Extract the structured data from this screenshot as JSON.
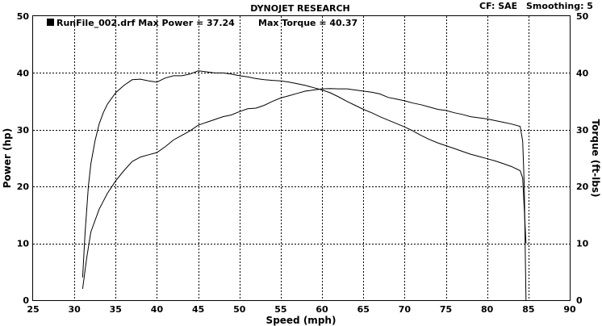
{
  "header": {
    "title": "DYNOJET RESEARCH",
    "cf": "CF: SAE",
    "smoothing": "Smoothing: 5"
  },
  "legend": {
    "run_label": "RunFile_002.drf Max Power = 37.24",
    "torque_label": "Max Torque = 40.37"
  },
  "chart_data": {
    "type": "line",
    "xlabel": "Speed (mph)",
    "ylabel": "Power (hp)",
    "y2label": "Torque (ft-lbs)",
    "xlim": [
      25,
      90
    ],
    "ylim": [
      0,
      50
    ],
    "y2lim": [
      0,
      50
    ],
    "x_ticks": [
      "25",
      "30",
      "35",
      "40",
      "45",
      "50",
      "55",
      "60",
      "65",
      "70",
      "75",
      "80",
      "85",
      "90"
    ],
    "y_ticks": [
      "0",
      "10",
      "20",
      "30",
      "40",
      "50"
    ],
    "y2_ticks": [
      "0",
      "10",
      "20",
      "30",
      "40",
      "50"
    ],
    "grid": true,
    "series": [
      {
        "axis": "left",
        "x": [
          31.0,
          31.5,
          32.0,
          33.0,
          34.0,
          35.0,
          36.0,
          37.0,
          38.0,
          39.0,
          40.0,
          41.0,
          42.0,
          43.0,
          44.0,
          45.0,
          46.0,
          47.0,
          48.0,
          49.0,
          50.0,
          51.0,
          52.0,
          53.0,
          54.0,
          55.0,
          56.0,
          57.0,
          58.0,
          59.0,
          60.0,
          61.0,
          62.0,
          63.0,
          64.0,
          65.0,
          66.0,
          67.0,
          68.0,
          69.0,
          70.0,
          71.0,
          72.0,
          73.0,
          74.0,
          75.0,
          76.0,
          77.0,
          78.0,
          79.0,
          80.0,
          81.0,
          82.0,
          83.0,
          84.0,
          84.3,
          84.5,
          84.7
        ],
        "y": [
          2.0,
          7.5,
          12.0,
          16.0,
          18.8,
          21.0,
          22.8,
          24.4,
          25.2,
          25.6,
          26.0,
          27.0,
          28.2,
          29.0,
          29.8,
          30.8,
          31.3,
          31.8,
          32.3,
          32.6,
          33.2,
          33.7,
          33.8,
          34.3,
          35.0,
          35.6,
          36.0,
          36.4,
          36.8,
          37.0,
          37.2,
          37.24,
          37.2,
          37.2,
          37.0,
          36.8,
          36.6,
          36.3,
          35.7,
          35.4,
          35.1,
          34.7,
          34.4,
          34.0,
          33.6,
          33.4,
          33.0,
          32.7,
          32.3,
          32.1,
          31.9,
          31.6,
          31.3,
          31.0,
          30.6,
          28.0,
          20.0,
          0.0
        ]
      },
      {
        "axis": "right",
        "x": [
          31.0,
          31.3,
          31.7,
          32.0,
          32.5,
          33.0,
          33.5,
          34.0,
          35.0,
          36.0,
          37.0,
          38.0,
          39.0,
          40.0,
          41.0,
          42.0,
          43.0,
          44.0,
          45.0,
          46.0,
          47.0,
          48.0,
          49.0,
          50.0,
          51.0,
          52.0,
          53.0,
          54.0,
          55.0,
          56.0,
          57.0,
          58.0,
          59.0,
          60.0,
          61.0,
          62.0,
          63.0,
          64.0,
          65.0,
          66.0,
          67.0,
          68.0,
          69.0,
          70.0,
          71.0,
          72.0,
          73.0,
          74.0,
          75.0,
          76.0,
          77.0,
          78.0,
          79.0,
          80.0,
          81.0,
          82.0,
          83.0,
          84.0,
          84.3,
          84.5,
          84.7
        ],
        "y": [
          4.0,
          12.0,
          20.0,
          24.0,
          28.0,
          31.0,
          33.0,
          34.5,
          36.5,
          37.8,
          38.8,
          38.9,
          38.6,
          38.4,
          39.1,
          39.5,
          39.5,
          39.8,
          40.37,
          40.2,
          40.0,
          40.0,
          39.8,
          39.5,
          39.3,
          39.0,
          38.8,
          38.7,
          38.6,
          38.4,
          38.1,
          37.8,
          37.4,
          37.0,
          36.5,
          35.8,
          35.0,
          34.3,
          33.6,
          33.0,
          32.3,
          31.7,
          31.1,
          30.5,
          29.8,
          29.0,
          28.3,
          27.7,
          27.2,
          26.7,
          26.2,
          25.7,
          25.3,
          24.9,
          24.5,
          24.0,
          23.5,
          22.8,
          21.5,
          16.0,
          10.0
        ]
      }
    ]
  }
}
